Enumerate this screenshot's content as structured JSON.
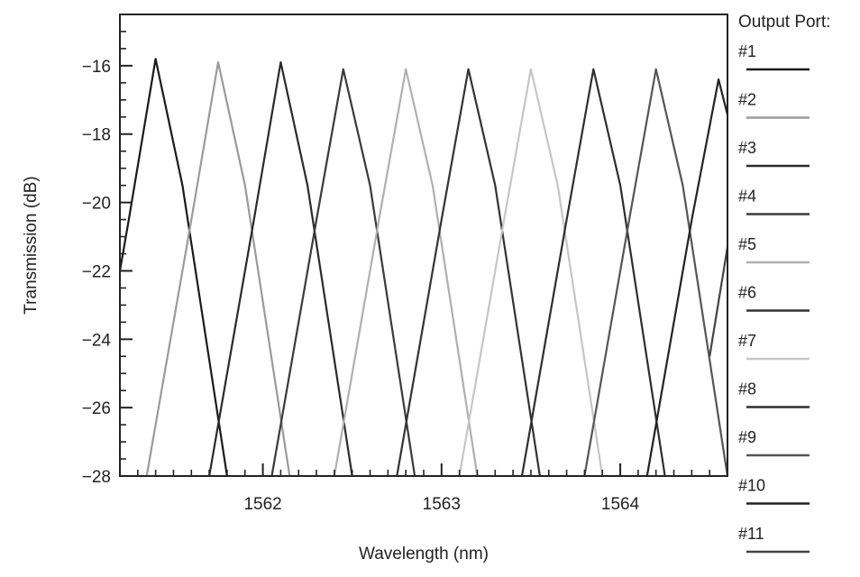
{
  "chart_data": {
    "type": "line",
    "title": "",
    "xlabel": "Wavelength (nm)",
    "ylabel": "Transmission (dB)",
    "xlim": [
      1561.2,
      1564.6
    ],
    "ylim": [
      -28,
      -14.5
    ],
    "xticks": [
      {
        "value": 1562,
        "label": "1562"
      },
      {
        "value": 1563,
        "label": "1563"
      },
      {
        "value": 1564,
        "label": "1564"
      }
    ],
    "yticks": [
      {
        "value": -16,
        "label": "−16"
      },
      {
        "value": -18,
        "label": "−18"
      },
      {
        "value": -20,
        "label": "−20"
      },
      {
        "value": -22,
        "label": "−22"
      },
      {
        "value": -24,
        "label": "−24"
      },
      {
        "value": -26,
        "label": "−26"
      },
      {
        "value": -28,
        "label": "−28"
      }
    ],
    "grid": false,
    "legend": {
      "title": "Output Port:",
      "placement": "right"
    },
    "series": [
      {
        "name": "#1",
        "color": "#1a1a1a",
        "x": [
          1561.0,
          1561.25,
          1561.4,
          1561.55,
          1561.8
        ],
        "y": [
          -28,
          -20.5,
          -15.8,
          -19.5,
          -28
        ]
      },
      {
        "name": "#2",
        "color": "#9a9a9a",
        "x": [
          1561.35,
          1561.6,
          1561.75,
          1561.9,
          1562.15
        ],
        "y": [
          -28,
          -20.5,
          -15.9,
          -19.5,
          -28
        ]
      },
      {
        "name": "#3",
        "color": "#2a2a2a",
        "x": [
          1561.7,
          1561.95,
          1562.1,
          1562.25,
          1562.5
        ],
        "y": [
          -28,
          -20.5,
          -15.9,
          -19.5,
          -28
        ]
      },
      {
        "name": "#4",
        "color": "#3a3a3a",
        "x": [
          1562.05,
          1562.3,
          1562.45,
          1562.6,
          1562.85
        ],
        "y": [
          -28,
          -20.5,
          -16.1,
          -19.5,
          -28
        ]
      },
      {
        "name": "#5",
        "color": "#b0b0b0",
        "x": [
          1562.4,
          1562.65,
          1562.8,
          1562.95,
          1563.2
        ],
        "y": [
          -28,
          -20.5,
          -16.1,
          -19.5,
          -28
        ]
      },
      {
        "name": "#6",
        "color": "#333333",
        "x": [
          1562.75,
          1563.0,
          1563.15,
          1563.3,
          1563.55
        ],
        "y": [
          -28,
          -20.5,
          -16.1,
          -19.5,
          -28
        ]
      },
      {
        "name": "#7",
        "color": "#c6c6c6",
        "x": [
          1563.1,
          1563.35,
          1563.5,
          1563.65,
          1563.9
        ],
        "y": [
          -28,
          -20.5,
          -16.1,
          -19.5,
          -28
        ]
      },
      {
        "name": "#8",
        "color": "#2e2e2e",
        "x": [
          1563.45,
          1563.7,
          1563.85,
          1564.0,
          1564.25
        ],
        "y": [
          -28,
          -20.5,
          -16.1,
          -19.5,
          -28
        ]
      },
      {
        "name": "#9",
        "color": "#555555",
        "x": [
          1563.8,
          1564.05,
          1564.2,
          1564.35,
          1564.6
        ],
        "y": [
          -28,
          -20.5,
          -16.1,
          -19.5,
          -28
        ]
      },
      {
        "name": "#10",
        "color": "#222222",
        "x": [
          1564.15,
          1564.4,
          1564.55,
          1564.7
        ],
        "y": [
          -28,
          -20.5,
          -16.4,
          -19.5
        ]
      },
      {
        "name": "#11",
        "color": "#444444",
        "x": [
          1564.5,
          1564.6
        ],
        "y": [
          -24.5,
          -21.3
        ]
      }
    ]
  }
}
